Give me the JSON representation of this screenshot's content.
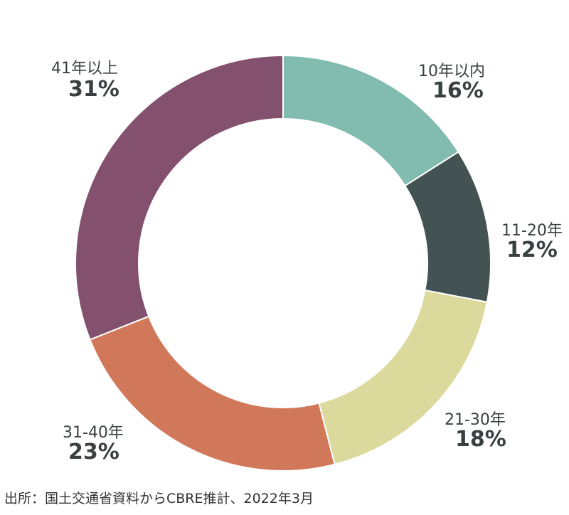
{
  "chart_data": {
    "type": "pie",
    "categories": [
      "10年以内",
      "11-20年",
      "21-30年",
      "31-40年",
      "41年以上"
    ],
    "values": [
      16,
      12,
      18,
      23,
      31
    ],
    "value_labels": [
      "16%",
      "12%",
      "18%",
      "23%",
      "31%"
    ],
    "colors": [
      "#82bbaf",
      "#435252",
      "#dbd99c",
      "#d2785a",
      "#83506e"
    ],
    "style": "donut",
    "title": ""
  },
  "footer": {
    "source": "出所：国土交通省資料からCBRE推計、2022年3月"
  }
}
